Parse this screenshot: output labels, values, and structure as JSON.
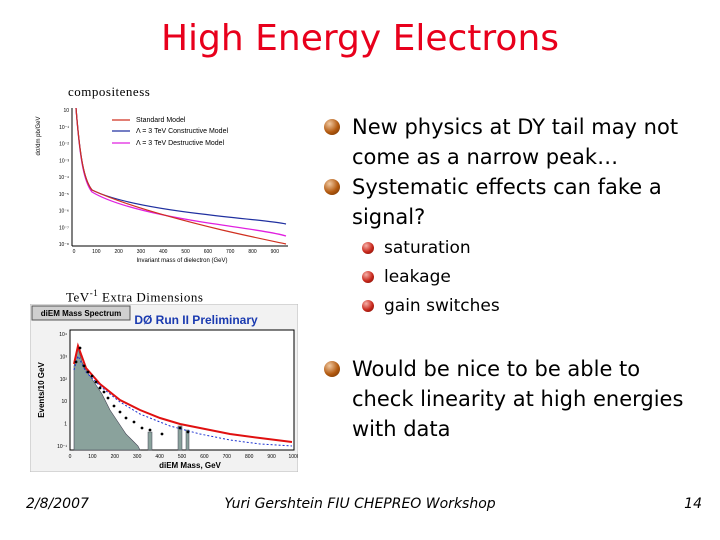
{
  "slide": {
    "title": "High Energy Electrons",
    "caption_top": "compositeness",
    "caption_mid": "TeV",
    "caption_mid_sup": "-1",
    "caption_mid_rest": " Extra Dimensions",
    "bullets": [
      "New physics at DY tail may not come as a narrow peak…",
      "Systematic effects can fake a signal?"
    ],
    "sub_bullets": [
      "saturation",
      "leakage",
      "gain switches"
    ],
    "bullet_last": "Would be nice to be able to check linearity at high energies with data",
    "footer": {
      "date": "2/8/2007",
      "center": "Yuri Gershtein FIU  CHEPREO Workshop",
      "page": "14"
    }
  },
  "chart_data": [
    {
      "type": "line",
      "xlabel": "Invariant mass of dielectron (GeV)",
      "ylabel": "dσ/dm pb/GeV",
      "xticks": [
        0,
        100,
        200,
        300,
        400,
        500,
        600,
        700,
        800,
        900
      ],
      "yticks": [
        "10",
        "10⁻¹",
        "10⁻²",
        "10⁻³",
        "10⁻⁴",
        "10⁻⁵",
        "10⁻⁶",
        "10⁻⁷",
        "10⁻⁸"
      ],
      "legend": [
        "Standard Model",
        "Λ = 3 TeV Constructive Model",
        "Λ = 3 TeV Destructive Model"
      ],
      "colors": [
        "#d03020",
        "#2030a0",
        "#e020e0"
      ]
    },
    {
      "type": "bar",
      "title": "DØ Run II Preliminary",
      "label_box": "diEM Mass Spectrum",
      "xlabel": "diEM Mass, GeV",
      "ylabel": "Events/10 GeV",
      "xticks": [
        0,
        100,
        200,
        300,
        400,
        500,
        600,
        700,
        800,
        900,
        1000
      ],
      "yticks": [
        "10⁴",
        "10³",
        "10²",
        "10",
        "1",
        "10⁻¹"
      ]
    }
  ]
}
